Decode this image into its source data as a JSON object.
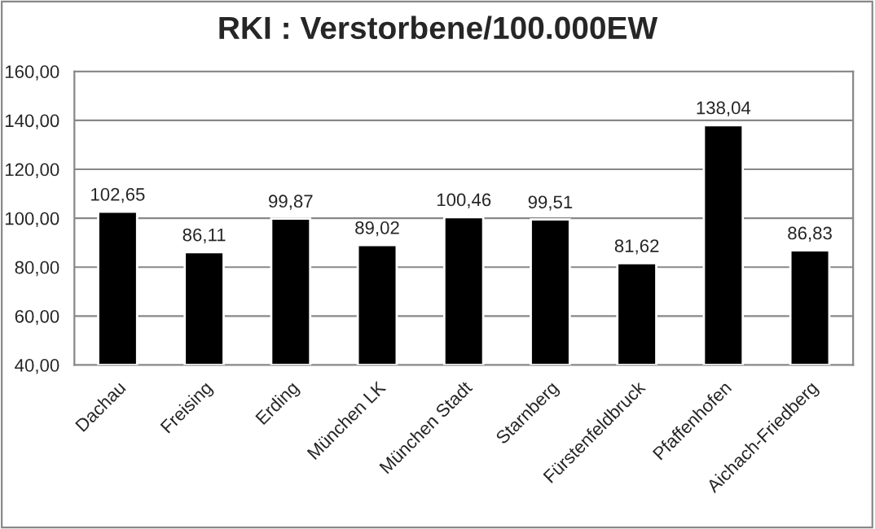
{
  "chart_data": {
    "type": "bar",
    "title": "RKI : Verstorbene/100.000EW",
    "categories": [
      "Dachau",
      "Freising",
      "Erding",
      "München LK",
      "München Stadt",
      "Starnberg",
      "Fürstenfeldbruck",
      "Pfaffenhofen",
      "Aichach-Friedberg"
    ],
    "values": [
      102.65,
      86.11,
      99.87,
      89.02,
      100.46,
      99.51,
      81.62,
      138.04,
      86.83
    ],
    "value_labels": [
      "102,65",
      "86,11",
      "99,87",
      "89,02",
      "100,46",
      "99,51",
      "81,62",
      "138,04",
      "86,83"
    ],
    "color": "#000000",
    "ylim": [
      40,
      160
    ],
    "yticks": [
      {
        "value": 40,
        "label": "40,00"
      },
      {
        "value": 60,
        "label": "60,00"
      },
      {
        "value": 80,
        "label": "80,00"
      },
      {
        "value": 100,
        "label": "100,00"
      },
      {
        "value": 120,
        "label": "120,00"
      },
      {
        "value": 140,
        "label": "140,00"
      },
      {
        "value": 160,
        "label": "160,00"
      }
    ],
    "grid": "y"
  }
}
